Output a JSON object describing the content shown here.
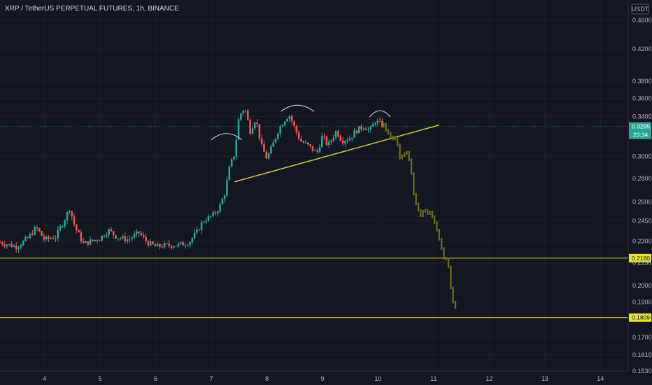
{
  "header": {
    "title": "XRP / TetherUS PERPETUAL FUTURES, 1h, BINANCE"
  },
  "axis": {
    "currency_button": "USDT"
  },
  "colors": {
    "background": "#131722",
    "up": "#26a69a",
    "down": "#ef5350",
    "projection": "#6b6b1f",
    "trendline": "#c8c83c",
    "level": "#e6e629",
    "last_price_tag": "#26a69a",
    "arc": "#d1d4dc"
  },
  "chart_data": {
    "type": "candlestick",
    "title": "XRP / TetherUS PERPETUAL FUTURES, 1h, BINANCE",
    "scale": "log",
    "ylim": [
      0.153,
      0.49
    ],
    "xlim": [
      3.2,
      14.5
    ],
    "x_ticks": [
      "4",
      "5",
      "6",
      "7",
      "8",
      "9",
      "10",
      "11",
      "12",
      "13",
      "14"
    ],
    "y_ticks": [
      "0.4600",
      "0.4200",
      "0.3800",
      "0.3600",
      "0.3400",
      "0.3000",
      "0.2800",
      "0.2600",
      "0.2450",
      "0.2300",
      "0.2150",
      "0.2000",
      "0.1900",
      "0.1700",
      "0.1610",
      "0.1530"
    ],
    "last_price": {
      "value": "0.3295",
      "countdown": "23:34"
    },
    "horizontal_levels": [
      {
        "value": 0.218,
        "label": "0.2180"
      },
      {
        "value": 0.1809,
        "label": "0.1809"
      }
    ],
    "trendline": {
      "from": [
        7.42,
        0.277
      ],
      "to": [
        11.1,
        0.331
      ]
    },
    "arcs": [
      {
        "from": 7.0,
        "to": 7.55,
        "peak": 0.323
      },
      {
        "from": 8.25,
        "to": 8.85,
        "peak": 0.353
      },
      {
        "from": 9.85,
        "to": 10.22,
        "peak": 0.347
      }
    ],
    "waypoints": [
      [
        3.2,
        0.229
      ],
      [
        3.5,
        0.226
      ],
      [
        3.7,
        0.232
      ],
      [
        3.85,
        0.24
      ],
      [
        4.0,
        0.231
      ],
      [
        4.2,
        0.233
      ],
      [
        4.35,
        0.245
      ],
      [
        4.45,
        0.255
      ],
      [
        4.55,
        0.24
      ],
      [
        4.7,
        0.228
      ],
      [
        5.0,
        0.232
      ],
      [
        5.15,
        0.238
      ],
      [
        5.3,
        0.233
      ],
      [
        5.5,
        0.231
      ],
      [
        5.7,
        0.236
      ],
      [
        5.85,
        0.229
      ],
      [
        6.0,
        0.226
      ],
      [
        6.2,
        0.227
      ],
      [
        6.4,
        0.227
      ],
      [
        6.6,
        0.229
      ],
      [
        6.75,
        0.237
      ],
      [
        6.85,
        0.245
      ],
      [
        7.05,
        0.25
      ],
      [
        7.15,
        0.256
      ],
      [
        7.25,
        0.268
      ],
      [
        7.33,
        0.29
      ],
      [
        7.42,
        0.303
      ],
      [
        7.5,
        0.34
      ],
      [
        7.6,
        0.35
      ],
      [
        7.7,
        0.325
      ],
      [
        7.8,
        0.338
      ],
      [
        7.9,
        0.31
      ],
      [
        8.0,
        0.298
      ],
      [
        8.1,
        0.31
      ],
      [
        8.2,
        0.325
      ],
      [
        8.3,
        0.335
      ],
      [
        8.4,
        0.342
      ],
      [
        8.5,
        0.328
      ],
      [
        8.6,
        0.315
      ],
      [
        8.75,
        0.31
      ],
      [
        8.9,
        0.303
      ],
      [
        9.0,
        0.32
      ],
      [
        9.1,
        0.31
      ],
      [
        9.25,
        0.325
      ],
      [
        9.35,
        0.315
      ],
      [
        9.5,
        0.318
      ],
      [
        9.6,
        0.325
      ],
      [
        9.75,
        0.33
      ],
      [
        9.85,
        0.325
      ],
      [
        9.95,
        0.335
      ],
      [
        10.05,
        0.332
      ],
      [
        10.1,
        0.33
      ]
    ],
    "projection": [
      [
        10.1,
        0.33
      ],
      [
        10.2,
        0.322
      ],
      [
        10.3,
        0.316
      ],
      [
        10.4,
        0.3
      ],
      [
        10.5,
        0.305
      ],
      [
        10.58,
        0.29
      ],
      [
        10.65,
        0.265
      ],
      [
        10.75,
        0.248
      ],
      [
        10.85,
        0.253
      ],
      [
        10.95,
        0.25
      ],
      [
        11.05,
        0.238
      ],
      [
        11.15,
        0.223
      ],
      [
        11.25,
        0.214
      ],
      [
        11.35,
        0.19
      ],
      [
        11.42,
        0.185
      ]
    ]
  }
}
